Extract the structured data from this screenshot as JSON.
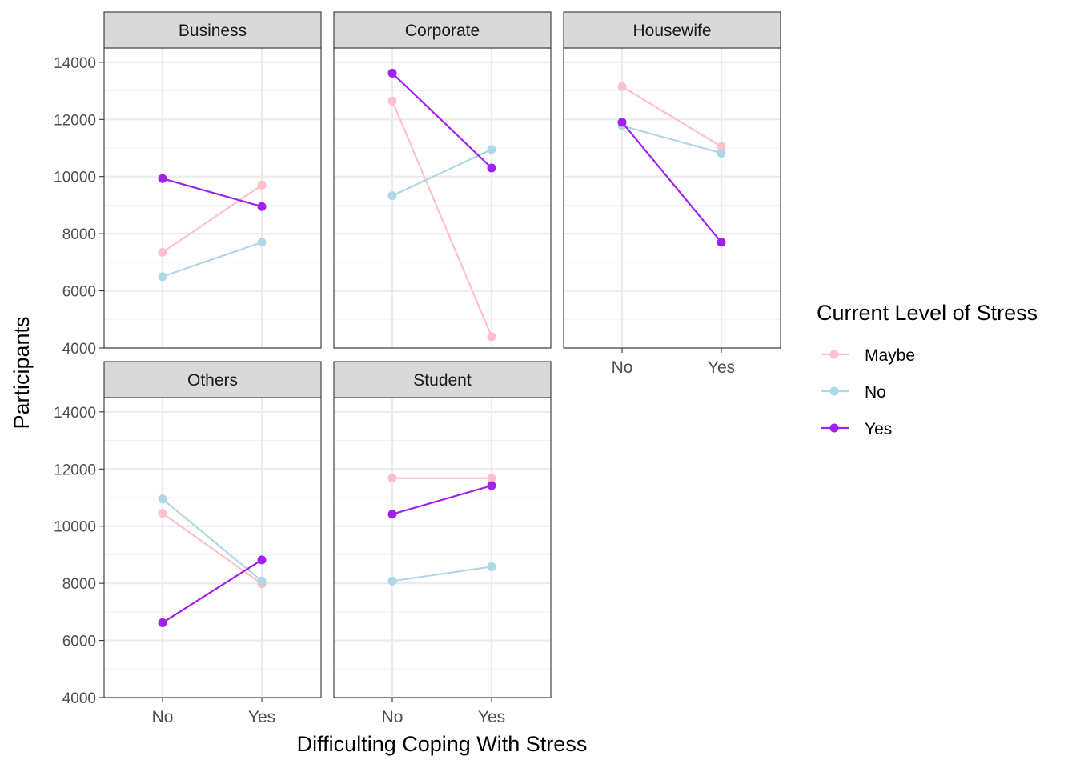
{
  "chart_data": {
    "type": "line",
    "xlabel": "Difficulting Coping With Stress",
    "ylabel": "Participants",
    "categories": [
      "No",
      "Yes"
    ],
    "ylim": [
      4000,
      14500
    ],
    "yticks": [
      4000,
      6000,
      8000,
      10000,
      12000,
      14000
    ],
    "grid": true,
    "legend": {
      "title": "Current Level of Stress",
      "placement": "right",
      "entries": [
        "Maybe",
        "No",
        "Yes"
      ]
    },
    "colors": {
      "Maybe": "#ffc0cb",
      "No": "#add8e6",
      "Yes": "#a020f0"
    },
    "facets": [
      {
        "label": "Business",
        "series": [
          {
            "name": "Maybe",
            "values": [
              7350,
              9700
            ]
          },
          {
            "name": "No",
            "values": [
              6500,
              7700
            ]
          },
          {
            "name": "Yes",
            "values": [
              9930,
              8950
            ]
          }
        ]
      },
      {
        "label": "Corporate",
        "series": [
          {
            "name": "Maybe",
            "values": [
              12650,
              4400
            ]
          },
          {
            "name": "No",
            "values": [
              9330,
              10950
            ]
          },
          {
            "name": "Yes",
            "values": [
              13620,
              10300
            ]
          }
        ]
      },
      {
        "label": "Housewife",
        "series": [
          {
            "name": "Maybe",
            "values": [
              13150,
              11050
            ]
          },
          {
            "name": "No",
            "values": [
              11780,
              10820
            ]
          },
          {
            "name": "Yes",
            "values": [
              11900,
              7700
            ]
          }
        ]
      },
      {
        "label": "Others",
        "series": [
          {
            "name": "Maybe",
            "values": [
              10450,
              7980
            ]
          },
          {
            "name": "No",
            "values": [
              10950,
              8080
            ]
          },
          {
            "name": "Yes",
            "values": [
              6620,
              8820
            ]
          }
        ]
      },
      {
        "label": "Student",
        "series": [
          {
            "name": "Maybe",
            "values": [
              11680,
              11680
            ]
          },
          {
            "name": "No",
            "values": [
              8080,
              8580
            ]
          },
          {
            "name": "Yes",
            "values": [
              10420,
              11420
            ]
          }
        ]
      }
    ]
  }
}
